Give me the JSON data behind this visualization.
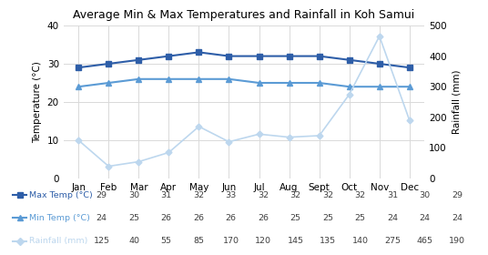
{
  "title": "Average Min & Max Temperatures and Rainfall in Koh Samui",
  "months": [
    "Jan",
    "Feb",
    "Mar",
    "Apr",
    "May",
    "Jun",
    "Jul",
    "Aug",
    "Sept",
    "Oct",
    "Nov",
    "Dec"
  ],
  "max_temp": [
    29,
    30,
    31,
    32,
    33,
    32,
    32,
    32,
    32,
    31,
    30,
    29
  ],
  "min_temp": [
    24,
    25,
    26,
    26,
    26,
    26,
    25,
    25,
    25,
    24,
    24,
    24
  ],
  "rainfall": [
    125,
    40,
    55,
    85,
    170,
    120,
    145,
    135,
    140,
    275,
    465,
    190
  ],
  "max_temp_color": "#2E5EA8",
  "min_temp_color": "#5B9BD5",
  "rainfall_color": "#BDD7EE",
  "temp_ylim": [
    0,
    40
  ],
  "rain_ylim": [
    0,
    500
  ],
  "temp_yticks": [
    0,
    10,
    20,
    30,
    40
  ],
  "rain_yticks": [
    0,
    100,
    200,
    300,
    400,
    500
  ],
  "ylabel_left": "Temperature (°C)",
  "ylabel_right": "Rainfall (mm)",
  "legend_labels": [
    "Max Temp (°C)",
    "Min Temp (°C)",
    "Rainfall (mm)"
  ],
  "table_rows": [
    [
      29,
      30,
      31,
      32,
      33,
      32,
      32,
      32,
      32,
      31,
      30,
      29
    ],
    [
      24,
      25,
      26,
      26,
      26,
      26,
      25,
      25,
      25,
      24,
      24,
      24
    ],
    [
      125,
      40,
      55,
      85,
      170,
      120,
      145,
      135,
      140,
      275,
      465,
      190
    ]
  ],
  "background_color": "#FFFFFF",
  "grid_color": "#D9D9D9",
  "fig_width": 5.36,
  "fig_height": 2.8,
  "dpi": 100
}
